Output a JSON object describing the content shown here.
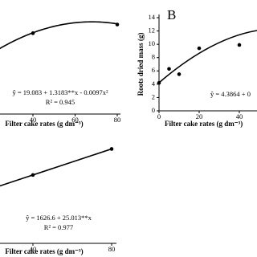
{
  "chart_data": [
    {
      "type": "scatter",
      "x": [
        40,
        80
      ],
      "values": [
        56,
        62
      ],
      "xlim": [
        0,
        80
      ],
      "ylim": [
        0,
        79
      ],
      "xticks": [
        40,
        60,
        80
      ],
      "xlabel": "Filter cake rates (g dm⁻³)",
      "fit": {
        "equation": "ŷ = 19.083 + 1.3183**x - 0.0097x²",
        "coefficients": [
          19.083,
          1.3183,
          -0.0097
        ]
      },
      "r2": "R² = 0.945",
      "color": "#000000"
    },
    {
      "type": "scatter",
      "panel": "B",
      "x": [
        0,
        5,
        10,
        20,
        40
      ],
      "values": [
        4.2,
        6.3,
        5.5,
        9.4,
        9.9
      ],
      "xlim": [
        0,
        40
      ],
      "ylim": [
        0,
        14
      ],
      "xticks": [
        0,
        20,
        40
      ],
      "yticks": [
        0,
        2,
        4,
        6,
        8,
        10,
        12,
        14
      ],
      "xlabel": "Filter cake rates (g dm⁻³)",
      "ylabel": "Roots dried mass (g)",
      "fit": {
        "equation": "ŷ = 4.3864 + 0"
      },
      "color": "#000000"
    },
    {
      "type": "scatter",
      "x": [
        40,
        80
      ],
      "values": [
        2627,
        3627
      ],
      "xlim": [
        0,
        80
      ],
      "ylim": [
        0,
        3950
      ],
      "xticks": [
        40,
        80
      ],
      "xlabel": "Filter cake rates (g dm⁻³)",
      "fit": {
        "equation": "ŷ = 1626.6 + 25.013**x",
        "coefficients": [
          1626.6,
          25.013
        ]
      },
      "r2": "R² = 0.977",
      "color": "#000000"
    }
  ]
}
